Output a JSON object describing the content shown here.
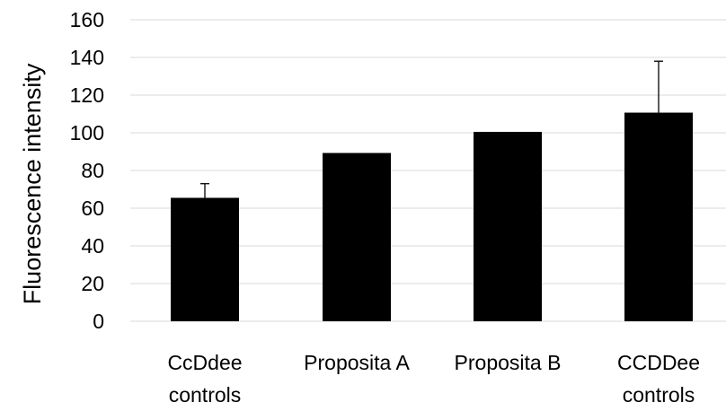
{
  "chart_data": {
    "type": "bar",
    "title": "",
    "xlabel": "",
    "ylabel": "Fluorescence intensity",
    "ylim": [
      0,
      160
    ],
    "yticks": [
      0,
      20,
      40,
      60,
      80,
      100,
      120,
      140,
      160
    ],
    "grid": true,
    "legend": "none",
    "categories": [
      [
        "CcDdee",
        "controls"
      ],
      [
        "Proposita A"
      ],
      [
        "Proposita B"
      ],
      [
        "CCDDee",
        "controls"
      ]
    ],
    "series": [
      {
        "values": [
          65.5,
          89.3,
          100.5,
          110.7
        ],
        "error_upper": [
          7.5,
          0,
          0,
          27.3
        ],
        "color": "#000000"
      }
    ]
  }
}
